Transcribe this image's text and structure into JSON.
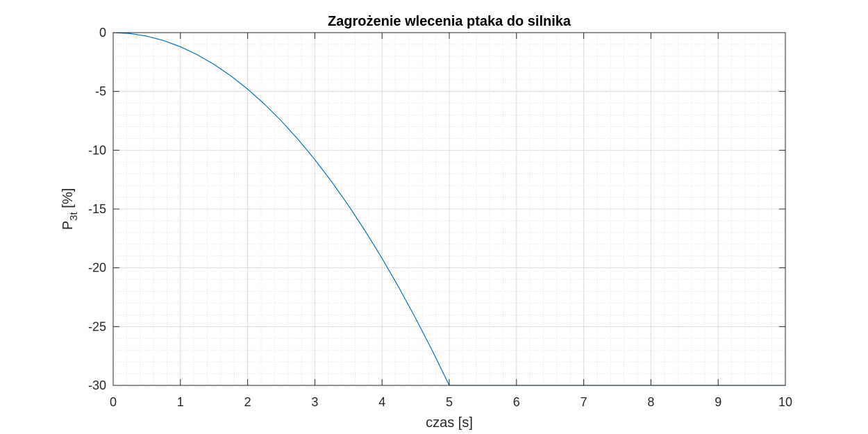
{
  "chart_data": {
    "type": "line",
    "title": "Zagrożenie wlecenia ptaka do silnika",
    "xlabel": "czas [s]",
    "ylabel": {
      "main": "P",
      "subscript": "3t",
      "unit": " [%]"
    },
    "xlim": [
      0,
      10
    ],
    "ylim": [
      -30,
      0
    ],
    "xticks": [
      0,
      1,
      2,
      3,
      4,
      5,
      6,
      7,
      8,
      9,
      10
    ],
    "yticks": [
      0,
      -5,
      -10,
      -15,
      -20,
      -25,
      -30
    ],
    "xtick_labels": [
      "0",
      "1",
      "2",
      "3",
      "4",
      "5",
      "6",
      "7",
      "8",
      "9",
      "10"
    ],
    "ytick_labels": [
      "0",
      "-5",
      "-10",
      "-15",
      "-20",
      "-25",
      "-30"
    ],
    "grid": true,
    "minor_grid": true,
    "series": [
      {
        "color": "#0072BD",
        "x": [
          0,
          0.25,
          0.5,
          0.75,
          1,
          1.25,
          1.5,
          1.75,
          2,
          2.25,
          2.5,
          2.75,
          3,
          3.25,
          3.5,
          3.75,
          4,
          4.25,
          4.5,
          4.75,
          5,
          6,
          7,
          8,
          9,
          10
        ],
        "y": [
          0,
          -0.075,
          -0.3,
          -0.675,
          -1.2,
          -1.875,
          -2.7,
          -3.675,
          -4.8,
          -6.075,
          -7.5,
          -9.075,
          -10.8,
          -12.675,
          -14.7,
          -16.875,
          -19.2,
          -21.675,
          -24.3,
          -27.075,
          -30,
          -30,
          -30,
          -30,
          -30,
          -30
        ]
      }
    ]
  }
}
